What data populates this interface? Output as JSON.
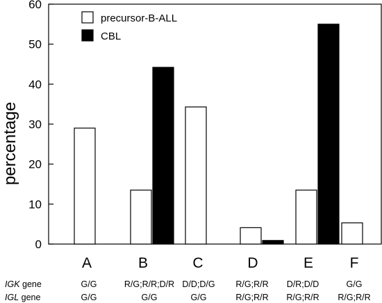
{
  "chart_data": {
    "type": "bar",
    "categories": [
      "A",
      "B",
      "C",
      "D",
      "E",
      "F"
    ],
    "series": [
      {
        "name": "precursor-B-ALL",
        "values": [
          29,
          13.5,
          34.3,
          4.1,
          13.5,
          5.3
        ],
        "color": "#ffffff"
      },
      {
        "name": "CBL",
        "values": [
          0,
          44.2,
          0,
          0.9,
          55,
          0
        ],
        "color": "#000000"
      }
    ],
    "ylabel": "percentage",
    "ylim": [
      0,
      60
    ],
    "yticks": [
      0,
      10,
      20,
      30,
      40,
      50,
      60
    ],
    "grid": false,
    "legend_position": "top-left",
    "genotype_rows": [
      {
        "gene": "IGK",
        "suffix": " gene",
        "values": [
          "G/G",
          "R/G;R/R;D/R",
          "D/D;D/G",
          "R/G;R/R",
          "D/R;D/D",
          "G/G"
        ]
      },
      {
        "gene": "IGL",
        "suffix": " gene",
        "values": [
          "G/G",
          "G/G",
          "G/G",
          "R/G;R/R",
          "R/G;R/R",
          "R/G;R/R"
        ]
      }
    ]
  }
}
